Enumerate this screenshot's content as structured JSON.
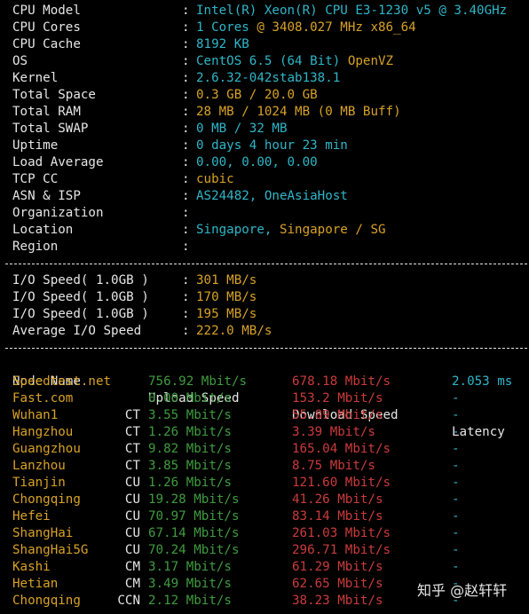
{
  "sysinfo": [
    {
      "key": "CPU Model",
      "parts": [
        {
          "t": "Intel(R) Xeon(R) CPU E3-1230 v5 @ 3.40GHz",
          "c": "cyan"
        }
      ]
    },
    {
      "key": "CPU Cores",
      "parts": [
        {
          "t": "1 Cores ",
          "c": "cyan"
        },
        {
          "t": "@ 3408.027 MHz x86_64",
          "c": "yellow"
        }
      ]
    },
    {
      "key": "CPU Cache",
      "parts": [
        {
          "t": "8192 KB",
          "c": "cyan"
        }
      ]
    },
    {
      "key": "OS",
      "parts": [
        {
          "t": "CentOS 6.5 (64 Bit) ",
          "c": "cyan"
        },
        {
          "t": "OpenVZ",
          "c": "yellow"
        }
      ]
    },
    {
      "key": "Kernel",
      "parts": [
        {
          "t": "2.6.32-042stab138.1",
          "c": "cyan"
        }
      ]
    },
    {
      "key": "Total Space",
      "parts": [
        {
          "t": "0.3 GB / 20.0 GB",
          "c": "yellow"
        }
      ]
    },
    {
      "key": "Total RAM",
      "parts": [
        {
          "t": "28 MB / 1024 MB (0 MB Buff)",
          "c": "yellow"
        }
      ]
    },
    {
      "key": "Total SWAP",
      "parts": [
        {
          "t": "0 MB / 32 MB",
          "c": "cyan"
        }
      ]
    },
    {
      "key": "Uptime",
      "parts": [
        {
          "t": "0 days 4 hour 23 min",
          "c": "cyan"
        }
      ]
    },
    {
      "key": "Load Average",
      "parts": [
        {
          "t": "0.00, 0.00, 0.00",
          "c": "cyan"
        }
      ]
    },
    {
      "key": "TCP CC",
      "parts": [
        {
          "t": "cubic",
          "c": "yellow"
        }
      ]
    },
    {
      "key": "ASN & ISP",
      "parts": [
        {
          "t": "AS24482, OneAsiaHost",
          "c": "cyan"
        }
      ]
    },
    {
      "key": "Organization",
      "parts": []
    },
    {
      "key": "Location",
      "parts": [
        {
          "t": "Singapore, ",
          "c": "cyan"
        },
        {
          "t": "Singapore / SG",
          "c": "yellow"
        }
      ]
    },
    {
      "key": "Region",
      "parts": []
    }
  ],
  "colon": ":",
  "io": [
    {
      "key": "I/O Speed( 1.0GB )",
      "value": "301 MB/s"
    },
    {
      "key": "I/O Speed( 1.0GB )",
      "value": "170 MB/s"
    },
    {
      "key": "I/O Speed( 1.0GB )",
      "value": "195 MB/s"
    },
    {
      "key": "Average I/O Speed",
      "value": "222.0 MB/s"
    }
  ],
  "speed_header": {
    "node": "Node Name",
    "upload": "Upload Speed",
    "download": "Download Speed",
    "latency": "Latency"
  },
  "speed_rows": [
    {
      "node": "Speedtest.net",
      "isp": "",
      "up": "756.92 Mbit/s",
      "down": "678.18 Mbit/s",
      "lat": "2.053 ms"
    },
    {
      "node": "Fast.com",
      "isp": "",
      "up": "0.00 Mbit/s",
      "down": "153.2 Mbit/s",
      "lat": "-"
    },
    {
      "node": "Wuhan1",
      "isp": "CT",
      "up": "3.55 Mbit/s",
      "down": "55.89 Mbit/s",
      "lat": "-"
    },
    {
      "node": "Hangzhou",
      "isp": "CT",
      "up": "1.26 Mbit/s",
      "down": "3.39 Mbit/s",
      "lat": "-"
    },
    {
      "node": "Guangzhou",
      "isp": "CT",
      "up": "9.82 Mbit/s",
      "down": "165.04 Mbit/s",
      "lat": "-"
    },
    {
      "node": "Lanzhou",
      "isp": "CT",
      "up": "3.85 Mbit/s",
      "down": "8.75 Mbit/s",
      "lat": "-"
    },
    {
      "node": "Tianjin",
      "isp": "CU",
      "up": "1.26 Mbit/s",
      "down": "121.60 Mbit/s",
      "lat": "-"
    },
    {
      "node": "Chongqing",
      "isp": "CU",
      "up": "19.28 Mbit/s",
      "down": "41.26 Mbit/s",
      "lat": "-"
    },
    {
      "node": "Hefei",
      "isp": "CU",
      "up": "70.97 Mbit/s",
      "down": "83.14 Mbit/s",
      "lat": "-"
    },
    {
      "node": "ShangHai",
      "isp": "CU",
      "up": "67.14 Mbit/s",
      "down": "261.03 Mbit/s",
      "lat": "-"
    },
    {
      "node": "ShangHai5G",
      "isp": "CU",
      "up": "70.24 Mbit/s",
      "down": "296.71 Mbit/s",
      "lat": "-"
    },
    {
      "node": "Kashi",
      "isp": "CM",
      "up": "3.17 Mbit/s",
      "down": "61.29 Mbit/s",
      "lat": "-"
    },
    {
      "node": "Hetian",
      "isp": "CM",
      "up": "3.49 Mbit/s",
      "down": "62.65 Mbit/s",
      "lat": "-"
    },
    {
      "node": "Chongqing",
      "isp": "CCN",
      "up": "2.12 Mbit/s",
      "down": "38.23 Mbit/s",
      "lat": "-"
    }
  ],
  "watermark": "知乎 @赵轩轩",
  "colors": {
    "background": "#000000",
    "text": "#e6e6e6",
    "cyan": "#2fb6c8",
    "yellow": "#d8a227",
    "green": "#3f9c3f",
    "red": "#cc3b3b"
  }
}
